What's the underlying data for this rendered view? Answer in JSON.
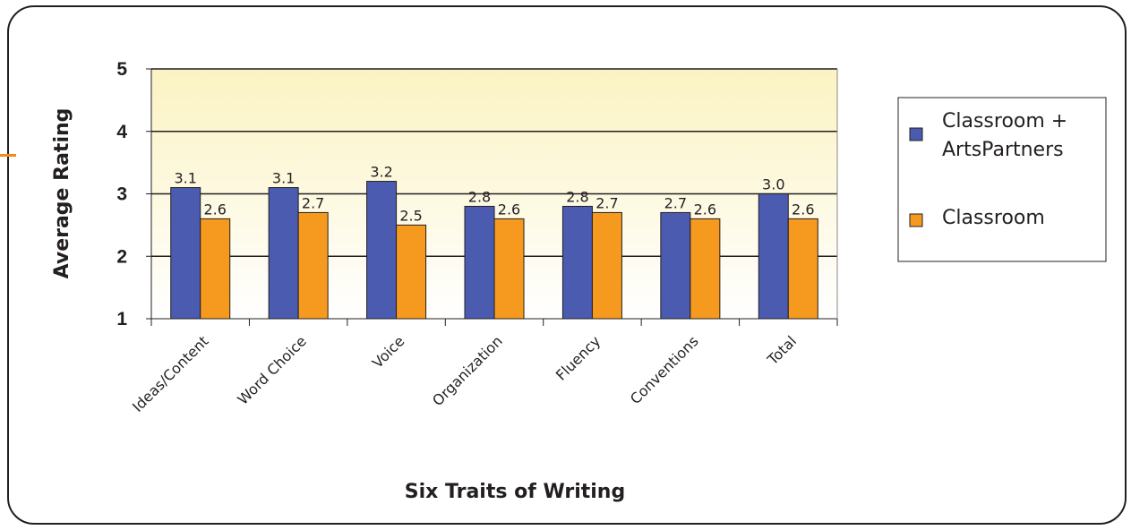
{
  "chart_data": {
    "type": "bar",
    "xlabel": "Six Traits of Writing",
    "ylabel": "Average Rating",
    "ylim": [
      1,
      5
    ],
    "yticks": [
      1,
      2,
      3,
      4,
      5
    ],
    "grid": true,
    "legend_position": "right",
    "categories": [
      "Ideas/Content",
      "Word Choice",
      "Voice",
      "Organization",
      "Fluency",
      "Conventions",
      "Total"
    ],
    "series": [
      {
        "name": "Classroom + ArtsPartners",
        "legend_lines": [
          "Classroom +",
          "ArtsPartners"
        ],
        "color": "#4a5bb0",
        "values": [
          3.1,
          3.1,
          3.2,
          2.8,
          2.8,
          2.7,
          3.0
        ],
        "labels": [
          "3.1",
          "3.1",
          "3.2",
          "2.8",
          "2.8",
          "2.7",
          "3.0"
        ]
      },
      {
        "name": "Classroom",
        "legend_lines": [
          "Classroom"
        ],
        "color": "#f59a1e",
        "values": [
          2.6,
          2.7,
          2.5,
          2.6,
          2.7,
          2.6,
          2.6
        ],
        "labels": [
          "2.6",
          "2.7",
          "2.5",
          "2.6",
          "2.7",
          "2.6",
          "2.6"
        ]
      }
    ]
  }
}
